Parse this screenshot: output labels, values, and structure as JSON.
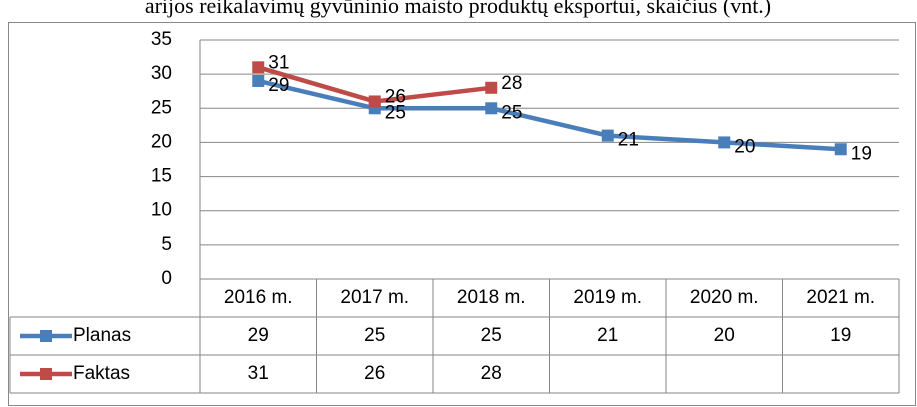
{
  "chart_data": {
    "type": "line",
    "title": "arijos reikalavimų gyvūninio maisto produktų eksportui, skaičius (vnt.)",
    "categories": [
      "2016 m.",
      "2017 m.",
      "2018 m.",
      "2019 m.",
      "2020 m.",
      "2021 m."
    ],
    "series": [
      {
        "name": "Planas",
        "color": "#4a7ebb",
        "values": [
          29,
          25,
          25,
          21,
          20,
          19
        ]
      },
      {
        "name": "Faktas",
        "color": "#be4b48",
        "values": [
          31,
          26,
          28,
          null,
          null,
          null
        ]
      }
    ],
    "ylim": [
      0,
      35
    ],
    "yticks": [
      0,
      5,
      10,
      15,
      20,
      25,
      30,
      35
    ],
    "grid": true
  }
}
